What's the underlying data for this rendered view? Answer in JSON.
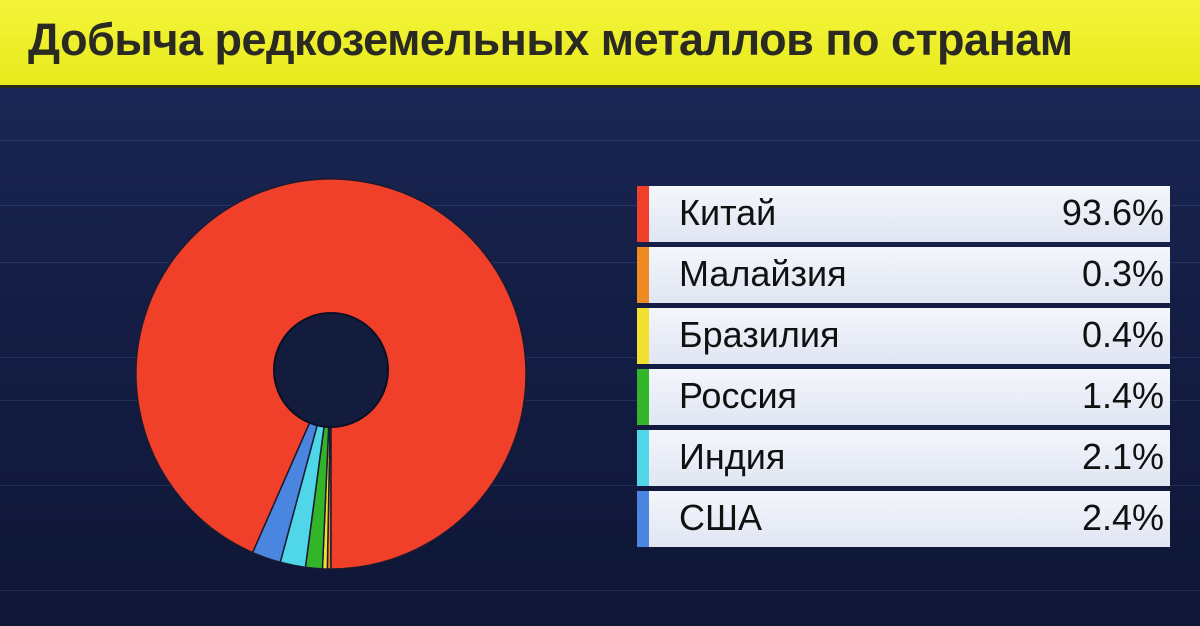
{
  "title": "Добыча редкоземельных металлов по странам",
  "chart_data": {
    "type": "pie",
    "variant": "donut",
    "title": "Добыча редкоземельных металлов по странам",
    "legend_position": "right",
    "slices": [
      {
        "label": "Китай",
        "value": 93.6,
        "display": "93.6%",
        "color": "#f0402a"
      },
      {
        "label": "Малайзия",
        "value": 0.3,
        "display": "0.3%",
        "color": "#f08a22"
      },
      {
        "label": "Бразилия",
        "value": 0.4,
        "display": "0.4%",
        "color": "#f2e030"
      },
      {
        "label": "Россия",
        "value": 1.4,
        "display": "1.4%",
        "color": "#33b52a"
      },
      {
        "label": "Индия",
        "value": 2.1,
        "display": "2.1%",
        "color": "#4fd6e8"
      },
      {
        "label": "США",
        "value": 2.4,
        "display": "2.4%",
        "color": "#4a86e0"
      }
    ]
  }
}
